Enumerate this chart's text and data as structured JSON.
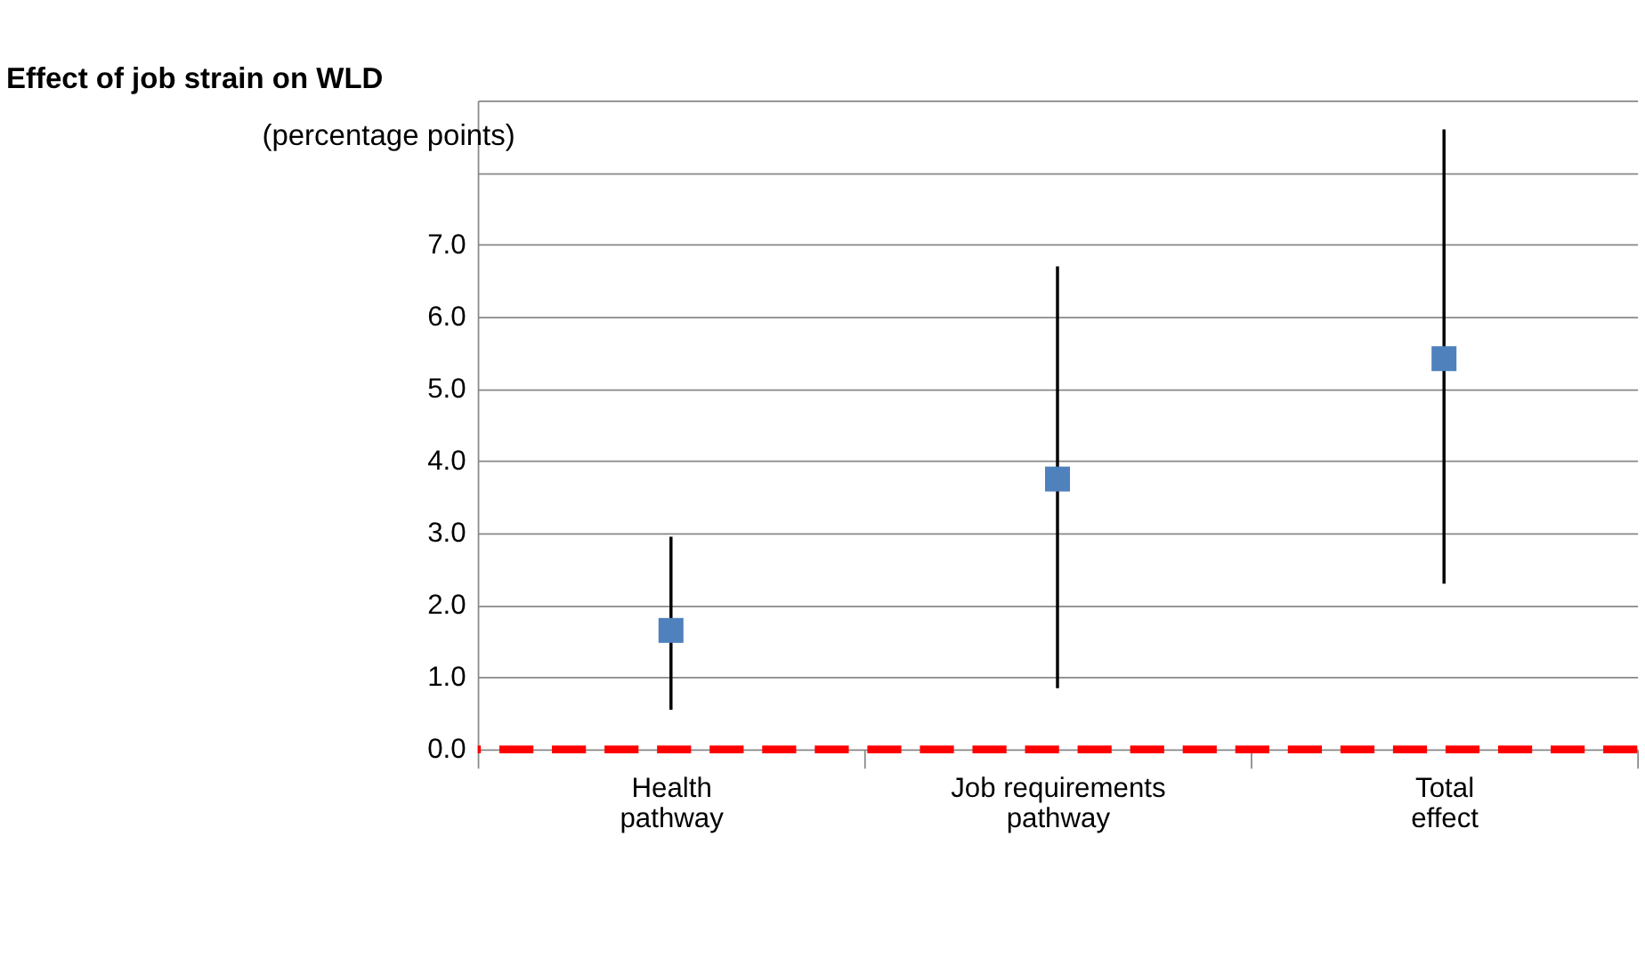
{
  "chart_data": {
    "type": "scatter",
    "title": "Effect  of job strain on WLD",
    "ylabel": "(percentage points)",
    "categories": [
      "Health pathway",
      "Job requirements pathway",
      "Total effect"
    ],
    "series": [
      {
        "color": "#4f81bd",
        "values": [
          1.65,
          3.75,
          5.42
        ],
        "errors": [
          [
            0.55,
            2.95
          ],
          [
            0.85,
            6.7
          ],
          [
            2.3,
            8.6
          ]
        ]
      }
    ],
    "ylim": [
      0,
      9
    ],
    "yticks": [
      {
        "value": 0,
        "label": "0.0"
      },
      {
        "value": 1,
        "label": "1.0"
      },
      {
        "value": 2,
        "label": "2.0"
      },
      {
        "value": 3,
        "label": "3.0"
      },
      {
        "value": 4,
        "label": "4.0"
      },
      {
        "value": 5,
        "label": "5.0"
      },
      {
        "value": 6,
        "label": "6.0"
      },
      {
        "value": 7,
        "label": "7.0"
      },
      {
        "value": 8,
        "label": null
      },
      {
        "value": 9,
        "label": null
      }
    ],
    "ref_lines": [
      {
        "axis": "y",
        "value": 0,
        "color": "#ff0000",
        "line_style": "dashed"
      }
    ],
    "grid": "y",
    "marker": "square"
  }
}
